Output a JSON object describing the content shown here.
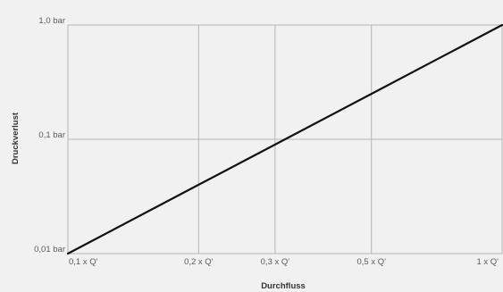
{
  "chart_data": {
    "type": "line",
    "title": "",
    "xlabel": "Durchfluss",
    "ylabel": "Druckverlust",
    "x_scale": "log",
    "y_scale": "log",
    "xlim": [
      0.1,
      1
    ],
    "ylim": [
      0.01,
      1
    ],
    "x_ticks": [
      {
        "value": 0.1,
        "label": "0,1 x Q'"
      },
      {
        "value": 0.2,
        "label": "0,2 x Q'"
      },
      {
        "value": 0.3,
        "label": "0,3 x Q'"
      },
      {
        "value": 0.5,
        "label": "0,5 x Q'"
      },
      {
        "value": 1,
        "label": "1 x Q'"
      }
    ],
    "y_ticks": [
      {
        "value": 0.01,
        "label": "0,01 bar"
      },
      {
        "value": 0.1,
        "label": "0,1 bar"
      },
      {
        "value": 1,
        "label": "1,0 bar"
      }
    ],
    "grid": true,
    "series": [
      {
        "x": [
          0.1,
          0.2,
          0.3,
          0.5,
          1
        ],
        "y": [
          0.01,
          0.04,
          0.09,
          0.25,
          1
        ]
      }
    ],
    "colors": {
      "background": "#f1f1f1",
      "grid": "#b5b5b5",
      "line": "#111111",
      "text": "#5a5a5a"
    }
  }
}
